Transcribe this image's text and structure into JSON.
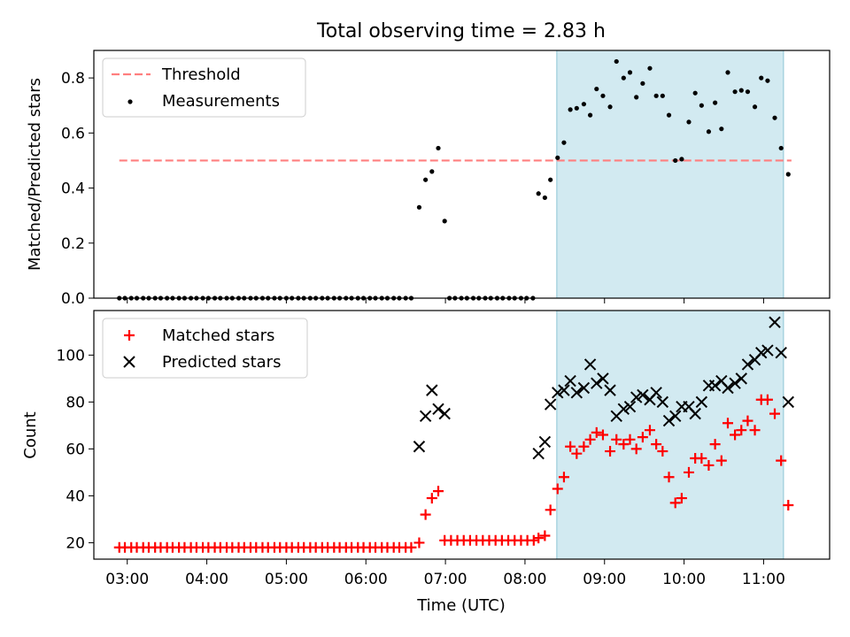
{
  "title": "Total observing time = 2.83 h",
  "xlabel": "Time (UTC)",
  "x_tick_labels": [
    "03:00",
    "04:00",
    "05:00",
    "06:00",
    "07:00",
    "08:00",
    "09:00",
    "10:00",
    "11:00"
  ],
  "colors": {
    "threshold": "#ff7f7f",
    "measurement": "#000000",
    "matched": "#ff0000",
    "predicted": "#000000",
    "observing_span": "#add8e6"
  },
  "chart_data": [
    {
      "type": "scatter",
      "ylabel": "Matched/Predicted stars",
      "xlim": [
        2.58,
        11.83
      ],
      "ylim": [
        0,
        0.9
      ],
      "grid": false,
      "legend_position": "top-left",
      "x_axis": "time-of-day (hours, UTC)",
      "x_ticks": [
        3,
        4,
        5,
        6,
        7,
        8,
        9,
        10,
        11
      ],
      "y_ticks": [
        0,
        0.2,
        0.4,
        0.6,
        0.8
      ],
      "y_tick_labels": [
        "0.0",
        "0.2",
        "0.4",
        "0.6",
        "0.8"
      ],
      "observing_span": [
        8.4,
        11.25
      ],
      "threshold": {
        "label": "Threshold",
        "value": 0.5,
        "x_range": [
          2.9,
          11.35
        ],
        "style": "dashed"
      },
      "series": [
        {
          "name": "Measurements",
          "marker": "dot",
          "points": [
            [
              2.9,
              0
            ],
            [
              2.97,
              0
            ],
            [
              3.05,
              0
            ],
            [
              3.12,
              0
            ],
            [
              3.2,
              0
            ],
            [
              3.27,
              0
            ],
            [
              3.35,
              0
            ],
            [
              3.42,
              0
            ],
            [
              3.5,
              0
            ],
            [
              3.57,
              0
            ],
            [
              3.65,
              0
            ],
            [
              3.72,
              0
            ],
            [
              3.8,
              0
            ],
            [
              3.87,
              0
            ],
            [
              3.95,
              0
            ],
            [
              4.02,
              0
            ],
            [
              4.1,
              0
            ],
            [
              4.17,
              0
            ],
            [
              4.25,
              0
            ],
            [
              4.32,
              0
            ],
            [
              4.4,
              0
            ],
            [
              4.47,
              0
            ],
            [
              4.55,
              0
            ],
            [
              4.62,
              0
            ],
            [
              4.7,
              0
            ],
            [
              4.77,
              0
            ],
            [
              4.85,
              0
            ],
            [
              4.92,
              0
            ],
            [
              5.0,
              0
            ],
            [
              5.07,
              0
            ],
            [
              5.15,
              0
            ],
            [
              5.22,
              0
            ],
            [
              5.3,
              0
            ],
            [
              5.37,
              0
            ],
            [
              5.45,
              0
            ],
            [
              5.52,
              0
            ],
            [
              5.6,
              0
            ],
            [
              5.67,
              0
            ],
            [
              5.75,
              0
            ],
            [
              5.82,
              0
            ],
            [
              5.9,
              0
            ],
            [
              5.97,
              0
            ],
            [
              6.05,
              0
            ],
            [
              6.12,
              0
            ],
            [
              6.2,
              0
            ],
            [
              6.27,
              0
            ],
            [
              6.35,
              0
            ],
            [
              6.42,
              0
            ],
            [
              6.5,
              0
            ],
            [
              6.57,
              0
            ],
            [
              6.67,
              0.33
            ],
            [
              6.75,
              0.43
            ],
            [
              6.83,
              0.46
            ],
            [
              6.91,
              0.545
            ],
            [
              6.99,
              0.28
            ],
            [
              7.05,
              0
            ],
            [
              7.12,
              0
            ],
            [
              7.2,
              0
            ],
            [
              7.27,
              0
            ],
            [
              7.35,
              0
            ],
            [
              7.42,
              0
            ],
            [
              7.5,
              0
            ],
            [
              7.57,
              0
            ],
            [
              7.65,
              0
            ],
            [
              7.72,
              0
            ],
            [
              7.8,
              0
            ],
            [
              7.87,
              0
            ],
            [
              7.95,
              0
            ],
            [
              8.02,
              0
            ],
            [
              8.1,
              0
            ],
            [
              8.17,
              0.38
            ],
            [
              8.25,
              0.365
            ],
            [
              8.32,
              0.43
            ],
            [
              8.41,
              0.51
            ],
            [
              8.49,
              0.565
            ],
            [
              8.57,
              0.685
            ],
            [
              8.65,
              0.69
            ],
            [
              8.74,
              0.705
            ],
            [
              8.82,
              0.665
            ],
            [
              8.9,
              0.76
            ],
            [
              8.98,
              0.735
            ],
            [
              9.07,
              0.695
            ],
            [
              9.15,
              0.86
            ],
            [
              9.24,
              0.8
            ],
            [
              9.32,
              0.82
            ],
            [
              9.4,
              0.73
            ],
            [
              9.48,
              0.78
            ],
            [
              9.57,
              0.835
            ],
            [
              9.65,
              0.735
            ],
            [
              9.73,
              0.735
            ],
            [
              9.81,
              0.665
            ],
            [
              9.89,
              0.5
            ],
            [
              9.97,
              0.505
            ],
            [
              10.06,
              0.64
            ],
            [
              10.14,
              0.745
            ],
            [
              10.22,
              0.7
            ],
            [
              10.31,
              0.605
            ],
            [
              10.39,
              0.71
            ],
            [
              10.47,
              0.615
            ],
            [
              10.55,
              0.82
            ],
            [
              10.64,
              0.75
            ],
            [
              10.72,
              0.755
            ],
            [
              10.8,
              0.75
            ],
            [
              10.89,
              0.695
            ],
            [
              10.97,
              0.8
            ],
            [
              11.05,
              0.79
            ],
            [
              11.14,
              0.655
            ],
            [
              11.22,
              0.545
            ],
            [
              11.31,
              0.45
            ]
          ]
        }
      ]
    },
    {
      "type": "scatter",
      "ylabel": "Count",
      "xlim": [
        2.58,
        11.83
      ],
      "ylim": [
        13,
        119
      ],
      "grid": false,
      "legend_position": "top-left",
      "x_axis": "time-of-day (hours, UTC)",
      "x_ticks": [
        3,
        4,
        5,
        6,
        7,
        8,
        9,
        10,
        11
      ],
      "y_ticks": [
        20,
        40,
        60,
        80,
        100
      ],
      "y_tick_labels": [
        "20",
        "40",
        "60",
        "80",
        "100"
      ],
      "observing_span": [
        8.4,
        11.25
      ],
      "series": [
        {
          "name": "Matched stars",
          "marker": "plus",
          "points": [
            [
              2.9,
              18
            ],
            [
              2.97,
              18
            ],
            [
              3.05,
              18
            ],
            [
              3.12,
              18
            ],
            [
              3.2,
              18
            ],
            [
              3.27,
              18
            ],
            [
              3.35,
              18
            ],
            [
              3.42,
              18
            ],
            [
              3.5,
              18
            ],
            [
              3.57,
              18
            ],
            [
              3.65,
              18
            ],
            [
              3.72,
              18
            ],
            [
              3.8,
              18
            ],
            [
              3.87,
              18
            ],
            [
              3.95,
              18
            ],
            [
              4.02,
              18
            ],
            [
              4.1,
              18
            ],
            [
              4.17,
              18
            ],
            [
              4.25,
              18
            ],
            [
              4.32,
              18
            ],
            [
              4.4,
              18
            ],
            [
              4.47,
              18
            ],
            [
              4.55,
              18
            ],
            [
              4.62,
              18
            ],
            [
              4.7,
              18
            ],
            [
              4.77,
              18
            ],
            [
              4.85,
              18
            ],
            [
              4.92,
              18
            ],
            [
              5.0,
              18
            ],
            [
              5.07,
              18
            ],
            [
              5.15,
              18
            ],
            [
              5.22,
              18
            ],
            [
              5.3,
              18
            ],
            [
              5.37,
              18
            ],
            [
              5.45,
              18
            ],
            [
              5.52,
              18
            ],
            [
              5.6,
              18
            ],
            [
              5.67,
              18
            ],
            [
              5.75,
              18
            ],
            [
              5.82,
              18
            ],
            [
              5.9,
              18
            ],
            [
              5.97,
              18
            ],
            [
              6.05,
              18
            ],
            [
              6.12,
              18
            ],
            [
              6.2,
              18
            ],
            [
              6.27,
              18
            ],
            [
              6.35,
              18
            ],
            [
              6.42,
              18
            ],
            [
              6.5,
              18
            ],
            [
              6.57,
              18
            ],
            [
              6.67,
              20
            ],
            [
              6.75,
              32
            ],
            [
              6.83,
              39
            ],
            [
              6.91,
              42
            ],
            [
              6.99,
              21
            ],
            [
              7.07,
              21
            ],
            [
              7.15,
              21
            ],
            [
              7.23,
              21
            ],
            [
              7.31,
              21
            ],
            [
              7.39,
              21
            ],
            [
              7.47,
              21
            ],
            [
              7.55,
              21
            ],
            [
              7.63,
              21
            ],
            [
              7.71,
              21
            ],
            [
              7.79,
              21
            ],
            [
              7.87,
              21
            ],
            [
              7.95,
              21
            ],
            [
              8.03,
              21
            ],
            [
              8.11,
              21
            ],
            [
              8.17,
              22
            ],
            [
              8.25,
              23
            ],
            [
              8.32,
              34
            ],
            [
              8.41,
              43
            ],
            [
              8.49,
              48
            ],
            [
              8.57,
              61
            ],
            [
              8.65,
              58
            ],
            [
              8.74,
              61
            ],
            [
              8.82,
              64
            ],
            [
              8.9,
              67
            ],
            [
              8.98,
              66
            ],
            [
              9.07,
              59
            ],
            [
              9.15,
              64
            ],
            [
              9.24,
              62
            ],
            [
              9.32,
              64
            ],
            [
              9.4,
              60
            ],
            [
              9.48,
              65
            ],
            [
              9.57,
              68
            ],
            [
              9.65,
              62
            ],
            [
              9.73,
              59
            ],
            [
              9.81,
              48
            ],
            [
              9.89,
              37
            ],
            [
              9.97,
              39
            ],
            [
              10.06,
              50
            ],
            [
              10.14,
              56
            ],
            [
              10.22,
              56
            ],
            [
              10.31,
              53
            ],
            [
              10.39,
              62
            ],
            [
              10.47,
              55
            ],
            [
              10.55,
              71
            ],
            [
              10.64,
              66
            ],
            [
              10.72,
              68
            ],
            [
              10.8,
              72
            ],
            [
              10.89,
              68
            ],
            [
              10.97,
              81
            ],
            [
              11.05,
              81
            ],
            [
              11.14,
              75
            ],
            [
              11.22,
              55
            ],
            [
              11.31,
              36
            ]
          ]
        },
        {
          "name": "Predicted stars",
          "marker": "x",
          "points": [
            [
              6.67,
              61
            ],
            [
              6.75,
              74
            ],
            [
              6.83,
              85
            ],
            [
              6.91,
              77
            ],
            [
              6.99,
              75
            ],
            [
              8.17,
              58
            ],
            [
              8.25,
              63
            ],
            [
              8.32,
              79
            ],
            [
              8.41,
              84
            ],
            [
              8.49,
              85
            ],
            [
              8.57,
              89
            ],
            [
              8.65,
              84
            ],
            [
              8.74,
              86
            ],
            [
              8.82,
              96
            ],
            [
              8.9,
              88
            ],
            [
              8.98,
              90
            ],
            [
              9.07,
              85
            ],
            [
              9.15,
              74
            ],
            [
              9.24,
              77
            ],
            [
              9.32,
              78
            ],
            [
              9.4,
              82
            ],
            [
              9.48,
              83
            ],
            [
              9.57,
              81
            ],
            [
              9.65,
              84
            ],
            [
              9.73,
              80
            ],
            [
              9.81,
              72
            ],
            [
              9.89,
              74
            ],
            [
              9.97,
              78
            ],
            [
              10.06,
              78
            ],
            [
              10.14,
              75
            ],
            [
              10.22,
              80
            ],
            [
              10.31,
              87
            ],
            [
              10.39,
              87
            ],
            [
              10.47,
              89
            ],
            [
              10.55,
              86
            ],
            [
              10.64,
              88
            ],
            [
              10.72,
              90
            ],
            [
              10.8,
              96
            ],
            [
              10.89,
              98
            ],
            [
              10.97,
              101
            ],
            [
              11.05,
              102
            ],
            [
              11.14,
              114
            ],
            [
              11.22,
              101
            ],
            [
              11.31,
              80
            ]
          ]
        }
      ]
    }
  ]
}
